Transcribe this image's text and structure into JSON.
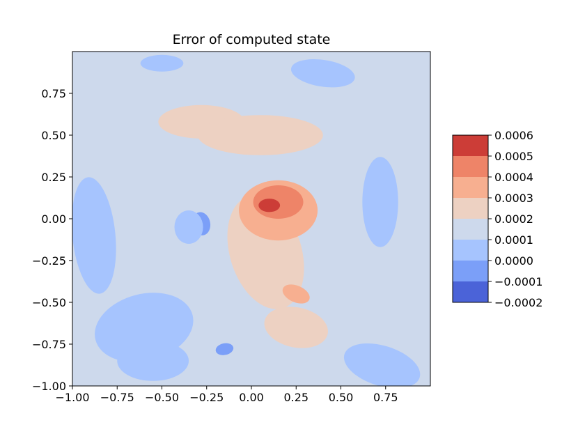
{
  "chart_data": {
    "type": "contourf",
    "title": "Error of computed state",
    "xlabel": "",
    "ylabel": "",
    "xlim": [
      -1.0,
      1.0
    ],
    "ylim": [
      -1.0,
      1.0
    ],
    "x_ticks": [
      -1.0,
      -0.75,
      -0.5,
      -0.25,
      0.0,
      0.25,
      0.5,
      0.75
    ],
    "x_tick_labels": [
      "−1.00",
      "−0.75",
      "−0.50",
      "−0.25",
      "0.00",
      "0.25",
      "0.50",
      "0.75"
    ],
    "y_ticks": [
      -1.0,
      -0.75,
      -0.5,
      -0.25,
      0.0,
      0.25,
      0.5,
      0.75
    ],
    "y_tick_labels": [
      "−1.00",
      "−0.75",
      "−0.50",
      "−0.25",
      "0.00",
      "0.25",
      "0.50",
      "0.75"
    ],
    "colormap": "coolwarm",
    "colorbar": {
      "levels": [
        -0.0002,
        -0.0001,
        0.0,
        0.0001,
        0.0002,
        0.0003,
        0.0004,
        0.0005,
        0.0006
      ],
      "tick_labels": [
        "−0.0002",
        "−0.0001",
        "0.0000",
        "0.0001",
        "0.0002",
        "0.0003",
        "0.0004",
        "0.0005",
        "0.0006"
      ],
      "band_colors": [
        "#4b63d8",
        "#7b9ff8",
        "#a6c4fe",
        "#cdd9ec",
        "#edd1c2",
        "#f7af90",
        "#ee8468",
        "#cc3d37"
      ]
    },
    "background_level": 0.0001,
    "features": [
      {
        "level": 0.0,
        "x": -0.6,
        "y": -0.65,
        "sx": 0.28,
        "sy": 0.2,
        "rot": 0.25
      },
      {
        "level": 0.0,
        "x": -0.88,
        "y": -0.1,
        "sx": 0.12,
        "sy": 0.35,
        "rot": 0.1
      },
      {
        "level": 0.0,
        "x": -0.55,
        "y": -0.85,
        "sx": 0.2,
        "sy": 0.12,
        "rot": 0.0
      },
      {
        "level": 0.0,
        "x": 0.72,
        "y": 0.1,
        "sx": 0.1,
        "sy": 0.27,
        "rot": 0.0
      },
      {
        "level": 0.0,
        "x": 0.73,
        "y": -0.88,
        "sx": 0.22,
        "sy": 0.12,
        "rot": -0.3
      },
      {
        "level": 0.0,
        "x": 0.4,
        "y": 0.87,
        "sx": 0.18,
        "sy": 0.08,
        "rot": -0.15
      },
      {
        "level": 0.0,
        "x": -0.5,
        "y": 0.93,
        "sx": 0.12,
        "sy": 0.05,
        "rot": 0.0
      },
      {
        "level": 0.0,
        "x": -0.35,
        "y": -0.05,
        "sx": 0.08,
        "sy": 0.1,
        "rot": 0.0
      },
      {
        "level": -0.0001,
        "x": -0.28,
        "y": -0.03,
        "sx": 0.05,
        "sy": 0.07,
        "rot": 0.2
      },
      {
        "level": -0.0001,
        "x": -0.15,
        "y": -0.78,
        "sx": 0.05,
        "sy": 0.035,
        "rot": 0.2
      },
      {
        "level": 0.0002,
        "x": -0.28,
        "y": 0.58,
        "sx": 0.24,
        "sy": 0.1,
        "rot": 0.0
      },
      {
        "level": 0.0002,
        "x": 0.05,
        "y": 0.5,
        "sx": 0.35,
        "sy": 0.12,
        "rot": 0.0
      },
      {
        "level": 0.0002,
        "x": 0.08,
        "y": -0.2,
        "sx": 0.2,
        "sy": 0.35,
        "rot": 0.3
      },
      {
        "level": 0.0002,
        "x": 0.25,
        "y": -0.65,
        "sx": 0.18,
        "sy": 0.12,
        "rot": -0.2
      },
      {
        "level": 0.0003,
        "x": 0.15,
        "y": 0.05,
        "sx": 0.22,
        "sy": 0.18,
        "rot": 0.0
      },
      {
        "level": 0.0003,
        "x": 0.25,
        "y": -0.45,
        "sx": 0.08,
        "sy": 0.05,
        "rot": -0.4
      },
      {
        "level": 0.0004,
        "x": 0.15,
        "y": 0.1,
        "sx": 0.14,
        "sy": 0.1,
        "rot": 0.0
      },
      {
        "level": 0.0005,
        "x": 0.1,
        "y": 0.08,
        "sx": 0.06,
        "sy": 0.04,
        "rot": 0.0
      },
      {
        "level": 0.0006,
        "x": 0.08,
        "y": 0.08,
        "sx": 0.02,
        "sy": 0.012,
        "rot": 0.3
      }
    ]
  }
}
